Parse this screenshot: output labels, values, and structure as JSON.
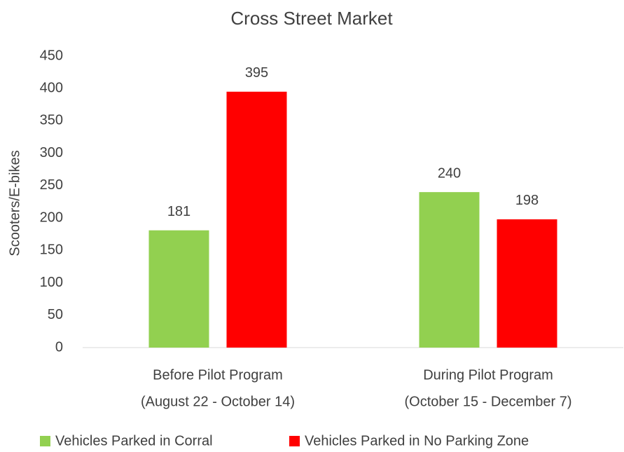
{
  "chart_data": {
    "type": "bar",
    "title": "Cross Street Market",
    "y_label": "Scooters/E-bikes",
    "categories": [
      [
        "Before Pilot Program",
        "(August 22 - October 14)"
      ],
      [
        "During Pilot Program",
        "(October 15 - December 7)"
      ]
    ],
    "series": [
      {
        "name": "Vehicles Parked in Corral",
        "color": "#92d050",
        "values": [
          181,
          240
        ]
      },
      {
        "name": "Vehicles Parked in No Parking Zone",
        "color": "#ff0000",
        "values": [
          395,
          198
        ]
      }
    ],
    "ylim": [
      0,
      450
    ],
    "yticks": [
      0,
      50,
      100,
      150,
      200,
      250,
      300,
      350,
      400,
      450
    ],
    "grid": false,
    "legend": "bottom"
  }
}
